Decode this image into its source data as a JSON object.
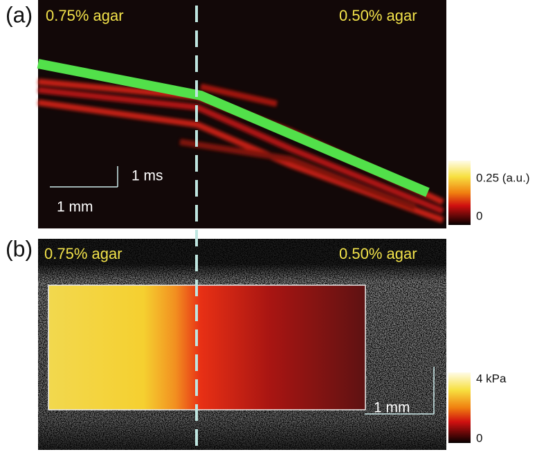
{
  "panel_a": {
    "label": "(a)",
    "left_label": "0.75% agar",
    "right_label": "0.50% agar",
    "time_scale": "1 ms",
    "length_scale": "1 mm",
    "colorbar": {
      "max_label": "0.25 (a.u.)",
      "min_label": "0"
    }
  },
  "panel_b": {
    "label": "(b)",
    "left_label": "0.75% agar",
    "right_label": "0.50% agar",
    "length_scale": "1 mm",
    "colorbar": {
      "max_label": "4 kPa",
      "min_label": "0"
    }
  }
}
